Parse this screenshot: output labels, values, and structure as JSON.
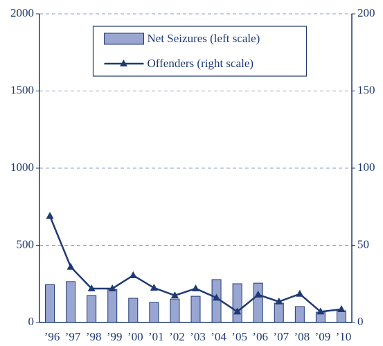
{
  "chart_data": {
    "type": "bar_line",
    "categories": [
      "’96",
      "’97",
      "’98",
      "’99",
      "’00",
      "’01",
      "’02",
      "’03",
      "’04",
      "’05",
      "’06",
      "’07",
      "’08",
      "’09",
      "’10"
    ],
    "series": [
      {
        "name": "Net Seizures (left scale)",
        "type": "bar",
        "axis": "y",
        "color": "#9aa6d2",
        "values": [
          245,
          265,
          175,
          215,
          157,
          130,
          152,
          170,
          278,
          251,
          255,
          125,
          103,
          67,
          76
        ]
      },
      {
        "name": "Offenders (right scale)",
        "type": "line",
        "axis": "y2",
        "color": "#1f3a73",
        "values": [
          69,
          36,
          22,
          22,
          30.5,
          22.4,
          17.5,
          22,
          16,
          7,
          18,
          13.5,
          18.5,
          7,
          8.5
        ]
      }
    ],
    "ylim": [
      0,
      2000
    ],
    "yticks": [
      0,
      500,
      1000,
      1500,
      2000
    ],
    "y2lim": [
      0,
      200
    ],
    "y2ticks": [
      0,
      50,
      100,
      150,
      200
    ],
    "grid": true,
    "legend": "upper center"
  }
}
